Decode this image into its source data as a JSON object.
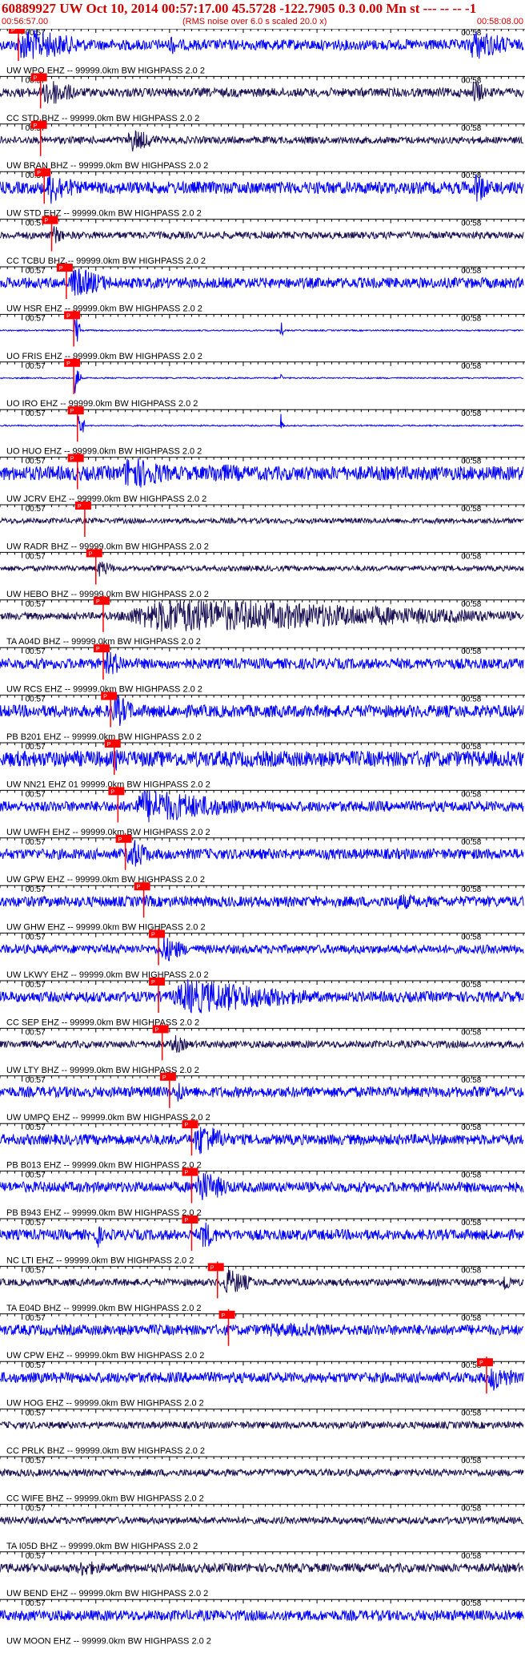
{
  "header": {
    "title": "60889927 UW Oct 10, 2014 00:57:17.00   45.5728 -122.7905  0.3 0.00 Mn st --- -- --  -1",
    "start_time": "00:56:57.00",
    "note": "(RMS noise over 6.0 s scaled 20.0 x)",
    "end_time": "00:58:08.00"
  },
  "colors": {
    "red": "#cc0000",
    "blue": "#0000ff",
    "navy": "#1a1055",
    "pick": "#ff0000",
    "label": "#000000"
  },
  "chart_data": {
    "type": "line",
    "title": "60889927 UW Oct 10, 2014 00:57:17.00   45.5728 -122.7905  0.3 0.00 Mn st --- -- --  -1",
    "xlim": [
      "00:56:57.00",
      "00:58:08.00"
    ],
    "tick_labels": [
      "00:57",
      "00:58"
    ],
    "pick_label": "P",
    "traces": [
      {
        "label": "UW WPO  EHZ -- 99999.0km BW  HIGHPASS  2.0  2",
        "color": "blue",
        "pick": "00:56:59.5",
        "noise": 0.3,
        "bursts": [
          [
            "00:56:58.5",
            "00:57:10",
            1.0
          ],
          [
            "00:57:20",
            "00:57:21",
            0.8
          ],
          [
            "00:58:00",
            "00:58:08",
            0.9
          ]
        ]
      },
      {
        "label": "CC STD  BHZ -- 99999.0km BW  HIGHPASS  2.0  2",
        "color": "navy",
        "pick": "00:57:02.5",
        "noise": 0.25,
        "bursts": [
          [
            "00:57:02.5",
            "00:57:08",
            0.9
          ],
          [
            "00:58:01",
            "00:58:03",
            0.9
          ]
        ]
      },
      {
        "label": "UW BRAN  BHZ -- 99999.0km BW  HIGHPASS  2.0  2",
        "color": "navy",
        "pick": "00:57:02.5",
        "noise": 0.2,
        "bursts": [
          [
            "00:57:14",
            "00:57:19",
            0.7
          ]
        ]
      },
      {
        "label": "UW STD  EHZ -- 99999.0km BW  HIGHPASS  2.0  2",
        "color": "blue",
        "pick": "00:57:03",
        "noise": 0.35,
        "bursts": [
          [
            "00:57:03",
            "00:57:08",
            1.0
          ],
          [
            "00:58:01",
            "00:58:04",
            1.0
          ]
        ]
      },
      {
        "label": "CC TCBU  BHZ -- 99999.0km BW  HIGHPASS  2.0  2",
        "color": "navy",
        "pick": "00:57:04",
        "noise": 0.2,
        "bursts": [
          [
            "00:57:04",
            "00:57:06",
            0.6
          ]
        ]
      },
      {
        "label": "UW HSR  EHZ -- 99999.0km BW  HIGHPASS  2.0  2",
        "color": "blue",
        "pick": "00:57:06",
        "noise": 0.3,
        "bursts": [
          [
            "00:57:06",
            "00:57:13",
            0.9
          ]
        ]
      },
      {
        "label": "UO FRIS  EHZ -- 99999.0km BW  HIGHPASS  2.0  2",
        "color": "blue",
        "pick": "00:57:07",
        "noise": 0.04,
        "bursts": [
          [
            "00:57:07",
            "00:57:08",
            1.0
          ],
          [
            "00:57:35",
            "00:57:35.5",
            0.6
          ]
        ]
      },
      {
        "label": "UO IRO  EHZ -- 99999.0km BW  HIGHPASS  2.0  2",
        "color": "blue",
        "pick": "00:57:07",
        "noise": 0.04,
        "bursts": [
          [
            "00:57:07",
            "00:57:08",
            0.9
          ],
          [
            "00:57:35",
            "00:57:35.5",
            0.3
          ]
        ]
      },
      {
        "label": "UO HUO  EHZ -- 99999.0km BW  HIGHPASS  2.0  2",
        "color": "blue",
        "pick": "00:57:07.5",
        "noise": 0.04,
        "bursts": [
          [
            "00:57:07.5",
            "00:57:08.5",
            1.0
          ],
          [
            "00:57:35",
            "00:57:35.5",
            0.8
          ]
        ]
      },
      {
        "label": "UW JCRV  EHZ -- 99999.0km BW  HIGHPASS  2.0  2",
        "color": "blue",
        "pick": "00:57:07.5",
        "noise": 0.4,
        "bursts": [
          [
            "00:57:13",
            "00:57:22",
            1.0
          ],
          [
            "00:57:24",
            "00:57:36",
            0.6
          ]
        ]
      },
      {
        "label": "UW RADR  BHZ -- 99999.0km BW  HIGHPASS  2.0  2",
        "color": "navy",
        "pick": "00:57:08.5",
        "noise": 0.15,
        "bursts": []
      },
      {
        "label": "UW HEBO  BHZ -- 99999.0km BW  HIGHPASS  2.0  2",
        "color": "navy",
        "pick": "00:57:10",
        "noise": 0.15,
        "bursts": [
          [
            "00:57:10",
            "00:57:13",
            0.5
          ]
        ]
      },
      {
        "label": "TA A04D  BHZ -- 99999.0km BW  HIGHPASS  2.0  2",
        "color": "navy",
        "pick": "00:57:11",
        "noise": 0.2,
        "bursts": [
          [
            "00:57:11",
            "00:58:08",
            1.0
          ]
        ]
      },
      {
        "label": "UW RCS  EHZ -- 99999.0km BW  HIGHPASS  2.0  2",
        "color": "blue",
        "pick": "00:57:11",
        "noise": 0.3,
        "bursts": [
          [
            "00:57:11",
            "00:57:15",
            0.8
          ]
        ]
      },
      {
        "label": "PB B201  EHZ -- 99999.0km BW  HIGHPASS  2.0  2",
        "color": "blue",
        "pick": "00:57:12",
        "noise": 0.35,
        "bursts": [
          [
            "00:57:12",
            "00:57:16",
            1.0
          ]
        ]
      },
      {
        "label": "UW NN21  EHZ 01 99999.0km BW  HIGHPASS  2.0  2",
        "color": "blue",
        "pick": "00:57:12.5",
        "noise": 0.45,
        "bursts": [
          [
            "00:57:12.5",
            "00:57:14",
            0.7
          ]
        ]
      },
      {
        "label": "UW UWFH  EHZ -- 99999.0km BW  HIGHPASS  2.0  2",
        "color": "blue",
        "pick": "00:57:13",
        "noise": 0.3,
        "bursts": [
          [
            "00:57:14",
            "00:57:32",
            1.0
          ]
        ]
      },
      {
        "label": "UW GPW  EHZ -- 99999.0km BW  HIGHPASS  2.0  2",
        "color": "blue",
        "pick": "00:57:14",
        "noise": 0.3,
        "bursts": [
          [
            "00:57:14",
            "00:57:18",
            1.0
          ]
        ]
      },
      {
        "label": "UW GHW  EHZ -- 99999.0km BW  HIGHPASS  2.0  2",
        "color": "blue",
        "pick": "00:57:16.5",
        "noise": 0.3,
        "bursts": [
          [
            "00:57:16.5",
            "00:57:19",
            0.4
          ],
          [
            "00:57:50",
            "00:57:57",
            0.5
          ]
        ]
      },
      {
        "label": "UW LKWY  EHZ -- 99999.0km BW  HIGHPASS  2.0  2",
        "color": "blue",
        "pick": "00:57:18.5",
        "noise": 0.25,
        "bursts": [
          [
            "00:57:18.5",
            "00:57:23",
            0.8
          ]
        ]
      },
      {
        "label": "CC SEP  EHZ -- 99999.0km BW  HIGHPASS  2.0  2",
        "color": "blue",
        "pick": "00:57:18.5",
        "noise": 0.3,
        "bursts": [
          [
            "00:57:19",
            "00:57:42",
            1.0
          ]
        ]
      },
      {
        "label": "UW LTY  BHZ -- 99999.0km BW  HIGHPASS  2.0  2",
        "color": "navy",
        "pick": "00:57:19",
        "noise": 0.2,
        "bursts": [
          [
            "00:57:20",
            "00:57:23",
            0.6
          ]
        ]
      },
      {
        "label": "UW UMPQ  EHZ -- 99999.0km BW  HIGHPASS  2.0  2",
        "color": "blue",
        "pick": "00:57:20",
        "noise": 0.3,
        "bursts": [
          [
            "00:57:21",
            "00:57:22",
            0.9
          ]
        ]
      },
      {
        "label": "PB B013  EHZ -- 99999.0km BW  HIGHPASS  2.0  2",
        "color": "blue",
        "pick": "00:57:23",
        "noise": 0.3,
        "bursts": [
          [
            "00:57:23",
            "00:57:29",
            1.0
          ]
        ]
      },
      {
        "label": "PB B943  EHZ -- 99999.0km BW  HIGHPASS  2.0  2",
        "color": "blue",
        "pick": "00:57:23",
        "noise": 0.3,
        "bursts": [
          [
            "00:57:23",
            "00:57:29",
            1.0
          ]
        ]
      },
      {
        "label": "NC LTI  EHZ -- 99999.0km BW  HIGHPASS  2.0  2",
        "color": "blue",
        "pick": "00:57:23",
        "noise": 0.3,
        "bursts": [
          [
            "00:57:10",
            "00:57:11",
            0.9
          ],
          [
            "00:57:24",
            "00:57:27",
            0.9
          ]
        ]
      },
      {
        "label": "TA E04D  BHZ -- 99999.0km BW  HIGHPASS  2.0  2",
        "color": "navy",
        "pick": "00:57:26.5",
        "noise": 0.2,
        "bursts": [
          [
            "00:57:27",
            "00:57:32",
            0.8
          ],
          [
            "00:58:05",
            "00:58:07",
            0.6
          ]
        ]
      },
      {
        "label": "UW CPW  EHZ -- 99999.0km BW  HIGHPASS  2.0  2",
        "color": "blue",
        "pick": "00:57:28",
        "noise": 0.3,
        "bursts": [
          [
            "00:57:28",
            "00:58:08",
            0.4
          ]
        ]
      },
      {
        "label": "UW HOG  EHZ -- 99999.0km BW  HIGHPASS  2.0  2",
        "color": "blue",
        "pick": "00:58:03",
        "noise": 0.3,
        "bursts": [
          [
            "00:58:03",
            "00:58:08",
            0.8
          ]
        ]
      },
      {
        "label": "CC PRLK  BHZ -- 99999.0km BW  HIGHPASS  2.0  2",
        "color": "navy",
        "pick": null,
        "noise": 0.2,
        "bursts": []
      },
      {
        "label": "CC WIFE  BHZ -- 99999.0km BW  HIGHPASS  2.0  2",
        "color": "navy",
        "pick": null,
        "noise": 0.2,
        "bursts": []
      },
      {
        "label": "TA I05D  BHZ -- 99999.0km BW  HIGHPASS  2.0  2",
        "color": "navy",
        "pick": null,
        "noise": 0.2,
        "bursts": []
      },
      {
        "label": "UW BEND  EHZ -- 99999.0km BW  HIGHPASS  2.0  2",
        "color": "navy",
        "pick": null,
        "noise": 0.25,
        "bursts": [
          [
            "00:57:07",
            "00:57:13",
            0.5
          ]
        ]
      },
      {
        "label": "UW MOON  EHZ -- 99999.0km BW  HIGHPASS  2.0  2",
        "color": "blue",
        "pick": null,
        "noise": 0.3,
        "bursts": []
      }
    ]
  }
}
